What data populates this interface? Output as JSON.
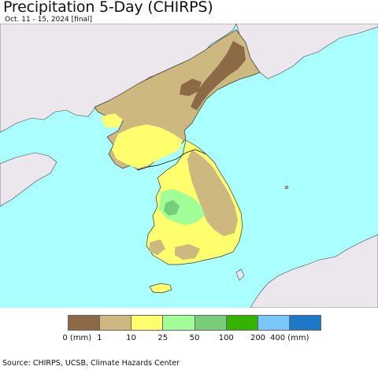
{
  "header": {
    "title": "Precipitation 5-Day (CHIRPS)",
    "subtitle": "Oct. 11 - 15, 2024 [final]"
  },
  "map": {
    "colors": {
      "ocean": "#aaffff",
      "land_no_data": "#ece7ec",
      "border": "#222222"
    }
  },
  "legend": {
    "swatches": [
      {
        "color": "#8c6a46"
      },
      {
        "color": "#cdb880"
      },
      {
        "color": "#ffff6e"
      },
      {
        "color": "#a0ff96"
      },
      {
        "color": "#78cd78"
      },
      {
        "color": "#32b400"
      },
      {
        "color": "#78c8ff"
      },
      {
        "color": "#1e78c8"
      }
    ],
    "labels": [
      "0 (mm)",
      "1",
      "10",
      "25",
      "50",
      "100",
      "200",
      "400 (mm)"
    ]
  },
  "footer": {
    "source": "Source: CHIRPS, UCSB, Climate Hazards Center"
  }
}
